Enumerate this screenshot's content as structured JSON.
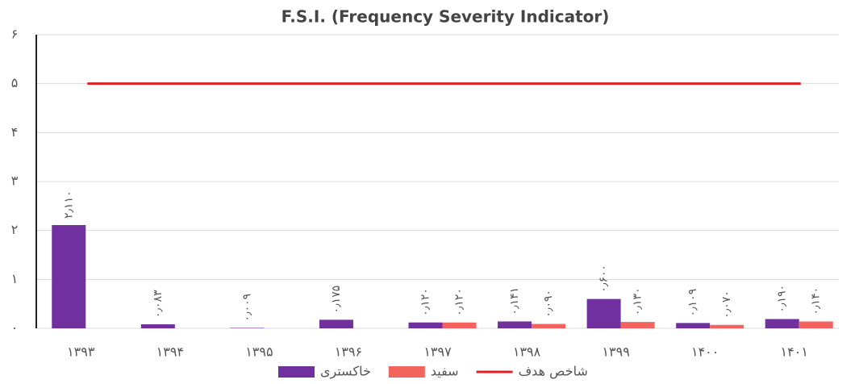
{
  "chart_data": {
    "type": "bar",
    "title": "F.S.I. (Frequency Severity Indicator)",
    "categories": [
      "۱۳۹۳",
      "۱۳۹۴",
      "۱۳۹۵",
      "۱۳۹۶",
      "۱۳۹۷",
      "۱۳۹۸",
      "۱۳۹۹",
      "۱۴۰۰",
      "۱۴۰۱"
    ],
    "series": [
      {
        "name": "خاکستری",
        "color": "#7030a0",
        "values": [
          2.11,
          0.083,
          0.009,
          0.175,
          0.12,
          0.141,
          0.6,
          0.109,
          0.19
        ],
        "value_labels": [
          "۲٫۱۱۰",
          "۰٫۰۸۳",
          "۰٫۰۰۹",
          "۰٫۱۷۵",
          "۰٫۱۲۰",
          "۰٫۱۴۱",
          "۰٫۶۰۰",
          "۰٫۱۰۹",
          "۰٫۱۹۰"
        ]
      },
      {
        "name": "سفید",
        "color": "#f4645f",
        "values": [
          null,
          null,
          null,
          null,
          0.12,
          0.09,
          0.13,
          0.07,
          0.14
        ],
        "value_labels": [
          null,
          null,
          null,
          null,
          "۰٫۱۲۰",
          "۰٫۰۹۰",
          "۰٫۱۳۰",
          "۰٫۰۷۰",
          "۰٫۱۴۰"
        ]
      },
      {
        "name": "شاخص هدف",
        "type": "line",
        "color": "#e02020",
        "values": [
          5,
          5,
          5,
          5,
          5,
          5,
          5,
          5,
          5
        ]
      }
    ],
    "ylim": [
      0,
      6
    ],
    "yticks": [
      {
        "value": 0,
        "label": "۰"
      },
      {
        "value": 1,
        "label": "۱"
      },
      {
        "value": 2,
        "label": "۲"
      },
      {
        "value": 3,
        "label": "۳"
      },
      {
        "value": 4,
        "label": "۴"
      },
      {
        "value": 5,
        "label": "۵"
      },
      {
        "value": 6,
        "label": "۶"
      }
    ],
    "grid": true,
    "legend": "bottom"
  }
}
